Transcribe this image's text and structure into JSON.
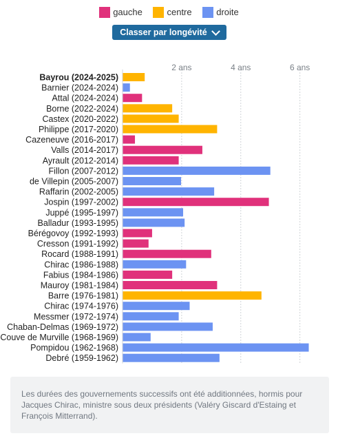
{
  "legend": [
    {
      "label": "gauche",
      "color": "#e0317b"
    },
    {
      "label": "centre",
      "color": "#ffb400"
    },
    {
      "label": "droite",
      "color": "#6c93f2"
    }
  ],
  "sort_button": {
    "label": "Classer par longévité",
    "icon": "chevron-down-icon"
  },
  "note": "Les durées des gouvernements successifs ont été additionnées, hormis pour Jacques Chirac, ministre sous deux présidents (Valéry Giscard d'Estaing et François Mitterrand).",
  "chart_data": {
    "type": "bar",
    "orientation": "horizontal",
    "x_unit": "ans",
    "xlim": [
      0,
      6.8
    ],
    "xticks": [
      2,
      4,
      6
    ],
    "xtick_labels": [
      "2 ans",
      "4 ans",
      "6 ans"
    ],
    "grid": true,
    "categories": [
      "Bayrou (2024-2025)",
      "Barnier (2024-2024)",
      "Attal (2024-2024)",
      "Borne (2022-2024)",
      "Castex (2020-2022)",
      "Philippe (2017-2020)",
      "Cazeneuve (2016-2017)",
      "Valls (2014-2017)",
      "Ayrault (2012-2014)",
      "Fillon (2007-2012)",
      "de Villepin (2005-2007)",
      "Raffarin (2002-2005)",
      "Jospin (1997-2002)",
      "Juppé (1995-1997)",
      "Balladur (1993-1995)",
      "Bérégovoy (1992-1993)",
      "Cresson (1991-1992)",
      "Rocard (1988-1991)",
      "Chirac (1986-1988)",
      "Fabius (1984-1986)",
      "Mauroy (1981-1984)",
      "Barre (1976-1981)",
      "Chirac (1974-1976)",
      "Messmer (1972-1974)",
      "Chaban-Delmas (1969-1972)",
      "Couve de Murville (1968-1969)",
      "Pompidou (1962-1968)",
      "Debré (1959-1962)"
    ],
    "values": [
      0.75,
      0.25,
      0.66,
      1.68,
      1.9,
      3.2,
      0.42,
      2.7,
      1.9,
      5.0,
      1.98,
      3.1,
      4.95,
      2.05,
      2.1,
      1.0,
      0.88,
      3.0,
      2.15,
      1.68,
      3.2,
      4.7,
      2.27,
      1.9,
      3.05,
      0.95,
      6.3,
      3.28
    ],
    "parties": [
      "centre",
      "droite",
      "gauche",
      "centre",
      "centre",
      "centre",
      "gauche",
      "gauche",
      "gauche",
      "droite",
      "droite",
      "droite",
      "gauche",
      "droite",
      "droite",
      "gauche",
      "gauche",
      "gauche",
      "droite",
      "gauche",
      "gauche",
      "centre",
      "droite",
      "droite",
      "droite",
      "droite",
      "droite",
      "droite"
    ],
    "highlight": "Bayrou (2024-2025)"
  }
}
